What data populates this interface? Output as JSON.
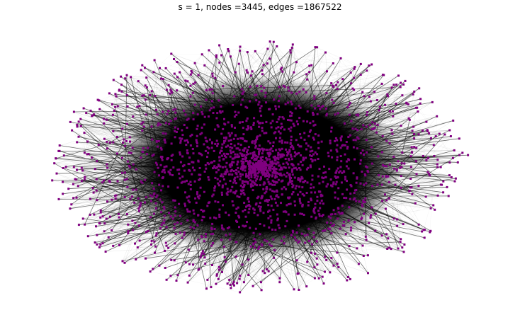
{
  "title": "s = 1, nodes =3445, edges =1867522"
}
